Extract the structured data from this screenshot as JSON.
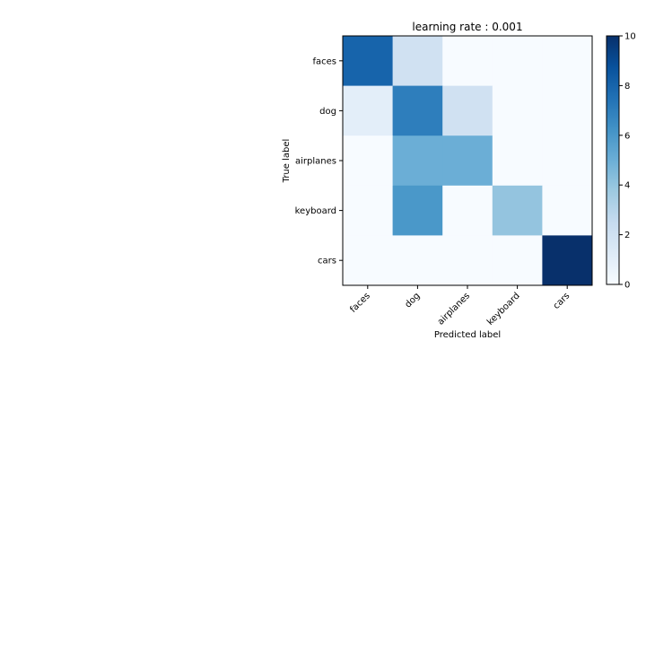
{
  "chart_data": {
    "type": "heatmap",
    "title": "learning rate : 0.001",
    "xlabel": "Predicted label",
    "ylabel": "True label",
    "x_categories": [
      "faces",
      "dog",
      "airplanes",
      "keyboard",
      "cars"
    ],
    "y_categories": [
      "faces",
      "dog",
      "airplanes",
      "keyboard",
      "cars"
    ],
    "values": [
      [
        8,
        2,
        0,
        0,
        0
      ],
      [
        1,
        7,
        2,
        0,
        0
      ],
      [
        0,
        5,
        5,
        0,
        0
      ],
      [
        0,
        6,
        0,
        4,
        0
      ],
      [
        0,
        0,
        0,
        0,
        10
      ]
    ],
    "colormap": "Blues",
    "vmin": 0,
    "vmax": 10,
    "colorbar_ticks": [
      "0",
      "2",
      "4",
      "6",
      "8",
      "10"
    ],
    "grid": false
  }
}
